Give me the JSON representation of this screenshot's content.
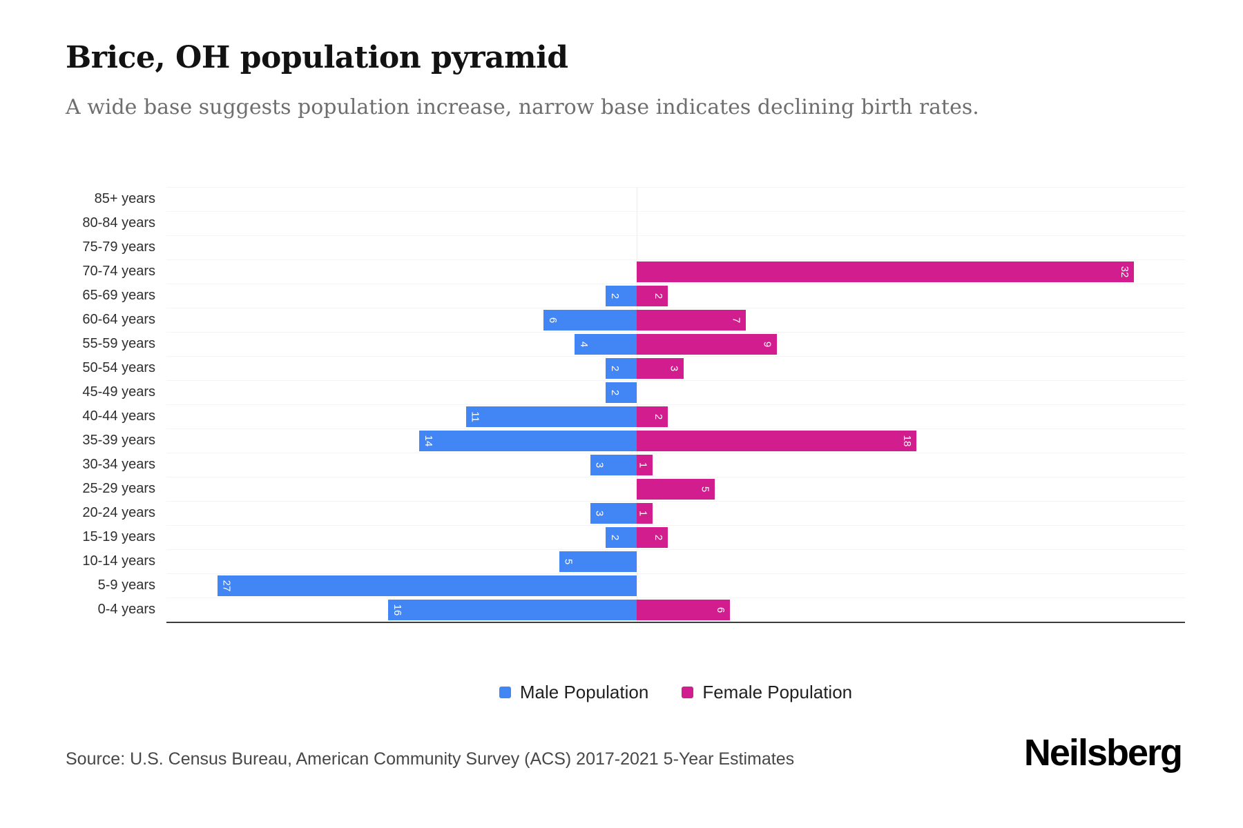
{
  "title": "Brice, OH population pyramid",
  "subtitle": "A wide base suggests population increase, narrow base indicates declining birth rates.",
  "source": "Source: U.S. Census Bureau, American Community Survey (ACS) 2017-2021 5-Year Estimates",
  "brand": "Neilsberg",
  "colors": {
    "male": "#4285F4",
    "female": "#D11D8E",
    "axis_line": "#3c3c3c",
    "gridline": "#f4f4f4",
    "subtitle_text": "#6e6e6e"
  },
  "chart_data": {
    "type": "bar",
    "variant": "population-pyramid",
    "title": "Brice, OH population pyramid",
    "categories": [
      "85+ years",
      "80-84 years",
      "75-79 years",
      "70-74 years",
      "65-69 years",
      "60-64 years",
      "55-59 years",
      "50-54 years",
      "45-49 years",
      "40-44 years",
      "35-39 years",
      "30-34 years",
      "25-29 years",
      "20-24 years",
      "15-19 years",
      "10-14 years",
      "5-9 years",
      "0-4 years"
    ],
    "series": [
      {
        "name": "Male Population",
        "color": "#4285F4",
        "side": "left",
        "values": [
          0,
          0,
          0,
          0,
          2,
          6,
          4,
          2,
          2,
          11,
          14,
          3,
          0,
          3,
          2,
          5,
          27,
          16
        ]
      },
      {
        "name": "Female Population",
        "color": "#D11D8E",
        "side": "right",
        "values": [
          0,
          0,
          0,
          32,
          2,
          7,
          9,
          3,
          0,
          2,
          18,
          1,
          5,
          1,
          2,
          0,
          0,
          6
        ]
      }
    ],
    "value_axis_range": [
      -35,
      35
    ],
    "data_labels": "value shown inside outer end of each bar, rotated 90 degrees, white",
    "legend_position": "bottom-center",
    "grid": "light horizontal category separators with a light vertical center baseline"
  }
}
